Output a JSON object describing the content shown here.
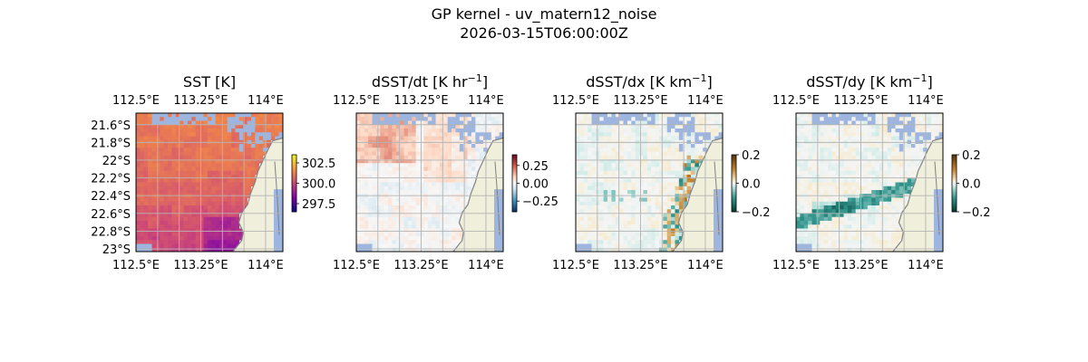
{
  "figure": {
    "title": "GP kernel - uv_matern12_noise",
    "timestamp": "2026-03-15T06:00:00Z"
  },
  "colors": {
    "land": "#efefdb",
    "missing_ocean": "#9db5df",
    "gridline": "#b4b4b4",
    "coastline": "#808080"
  },
  "chart_data": [
    {
      "type": "heatmap",
      "title": "SST [K]",
      "title_unit_exp": "",
      "xticks": [
        "112.5°E",
        "113.25°E",
        "114°E"
      ],
      "yticks": [
        "21.6°S",
        "21.8°S",
        "22°S",
        "22.2°S",
        "22.4°S",
        "22.6°S",
        "22.8°S",
        "23°S"
      ],
      "xlim": [
        112.5,
        114.2
      ],
      "ylim": [
        -23.03,
        -21.47
      ],
      "colormap": "plasma",
      "colorbar": {
        "ticks": [
          "302.5",
          "300.0",
          "297.5"
        ],
        "values": [
          302.5,
          300.0,
          297.5
        ],
        "range": [
          296.5,
          303.5
        ]
      }
    },
    {
      "type": "heatmap",
      "title": "dSST/dt [K hr",
      "title_unit_exp": "−1",
      "xticks": [
        "112.5°E",
        "113.25°E",
        "114°E"
      ],
      "yticks": [],
      "xlim": [
        112.5,
        114.2
      ],
      "ylim": [
        -23.03,
        -21.47
      ],
      "colormap": "RdBu_r",
      "colorbar": {
        "ticks": [
          "0.25",
          "0.00",
          "−0.25"
        ],
        "values": [
          0.25,
          0.0,
          -0.25
        ],
        "range": [
          -0.4,
          0.4
        ]
      }
    },
    {
      "type": "heatmap",
      "title": "dSST/dx [K km",
      "title_unit_exp": "−1",
      "xticks": [
        "112.5°E",
        "113.25°E",
        "114°E"
      ],
      "yticks": [],
      "xlim": [
        112.5,
        114.2
      ],
      "ylim": [
        -23.03,
        -21.47
      ],
      "colormap": "BrBG_r",
      "colorbar": {
        "ticks": [
          "0.2",
          "0.0",
          "−0.2"
        ],
        "values": [
          0.2,
          0.0,
          -0.2
        ],
        "range": [
          -0.2,
          0.2
        ]
      }
    },
    {
      "type": "heatmap",
      "title": "dSST/dy [K km",
      "title_unit_exp": "−1",
      "xticks": [
        "112.5°E",
        "113.25°E",
        "114°E"
      ],
      "yticks": [],
      "xlim": [
        112.5,
        114.2
      ],
      "ylim": [
        -23.03,
        -21.47
      ],
      "colormap": "BrBG_r",
      "colorbar": {
        "ticks": [
          "0.2",
          "0.0",
          "−0.2"
        ],
        "values": [
          0.2,
          0.0,
          -0.2
        ],
        "range": [
          -0.2,
          0.2
        ]
      }
    }
  ]
}
